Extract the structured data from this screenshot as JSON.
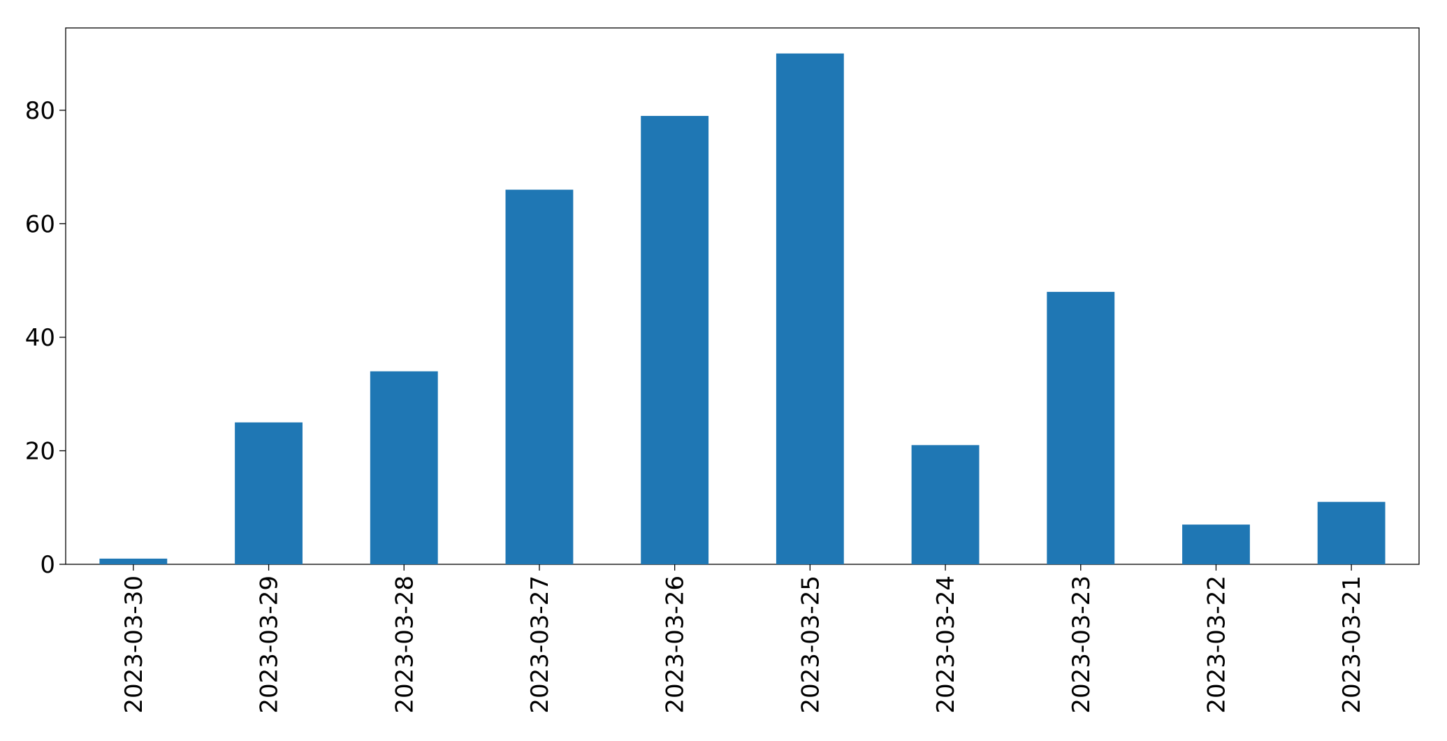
{
  "chart_data": {
    "type": "bar",
    "categories": [
      "2023-03-30",
      "2023-03-29",
      "2023-03-28",
      "2023-03-27",
      "2023-03-26",
      "2023-03-25",
      "2023-03-24",
      "2023-03-23",
      "2023-03-22",
      "2023-03-21"
    ],
    "values": [
      1,
      25,
      34,
      66,
      79,
      90,
      21,
      48,
      7,
      11
    ],
    "color": "#1f77b4",
    "ylim": [
      0,
      94.5
    ],
    "yticks": [
      0,
      20,
      40,
      60,
      80
    ],
    "grid": false
  }
}
